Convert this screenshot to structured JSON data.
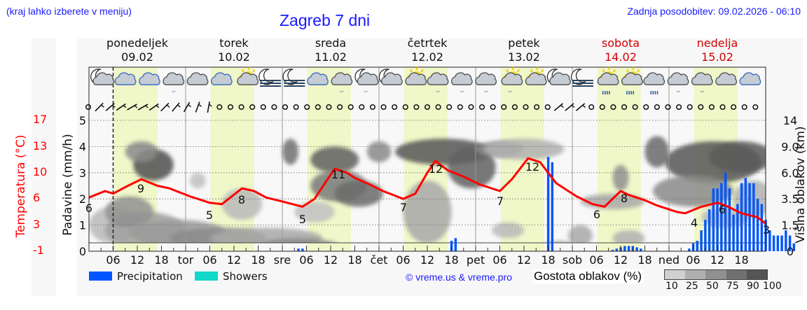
{
  "header": {
    "left_note": "(kraj lahko izberete v meniju)",
    "title": "Zagreb 7 dni",
    "updated": "Zadnja posodobitev: 09.02.2026 - 06:10"
  },
  "days": [
    {
      "name": "ponedeljek",
      "date": "09.02",
      "weekend": false
    },
    {
      "name": "torek",
      "date": "10.02",
      "weekend": false
    },
    {
      "name": "sreda",
      "date": "11.02",
      "weekend": false
    },
    {
      "name": "četrtek",
      "date": "12.02",
      "weekend": false
    },
    {
      "name": "petek",
      "date": "13.02",
      "weekend": false
    },
    {
      "name": "sobota",
      "date": "14.02",
      "weekend": true
    },
    {
      "name": "nedelja",
      "date": "15.02",
      "weekend": true
    }
  ],
  "axes": {
    "temp_label": "Temperatura (°C)",
    "temp_ticks": [
      "17",
      "13",
      "10",
      "6",
      "3",
      "-1"
    ],
    "precip_label": "Padavine (mm/h)",
    "precip_ticks": [
      "5",
      "4",
      "3",
      "2",
      "1",
      "0"
    ],
    "cloud_label": "Višina oblakov (km)",
    "cloud_ticks": [
      "14",
      "9.0",
      "6.0",
      "3.5",
      "1.5",
      "0"
    ],
    "x_ticks": [
      "06",
      "12",
      "18",
      "tor",
      "06",
      "12",
      "18",
      "sre",
      "06",
      "12",
      "18",
      "čet",
      "06",
      "12",
      "18",
      "pet",
      "06",
      "12",
      "18",
      "sob",
      "06",
      "12",
      "18",
      "ned",
      "06",
      "12",
      "18"
    ]
  },
  "legend": {
    "precipitation": "Precipitation",
    "showers": "Showers",
    "credit": "© vreme.us & vreme.pro",
    "cloud_density_label": "Gostota oblakov (%)",
    "cloud_density_ticks": [
      "10",
      "25",
      "50",
      "75",
      "90",
      "100"
    ]
  },
  "colors": {
    "precipitation": "#0055ff",
    "showers": "#11d8c8",
    "temperature": "#ff0000",
    "daylight": "#f0f7c8",
    "weekend": "#d40000",
    "link": "#1a1aff"
  },
  "icons": [
    "moon-cloud",
    "cloud",
    "cloud",
    "cloud-drizzle",
    "cloud",
    "cloud",
    "sun-cloud",
    "moon-fog",
    "moon-fog",
    "cloud",
    "cloud-drizzle",
    "moon-cloud-drizzle",
    "moon-cloud",
    "sun-cloud",
    "cloud-drizzle",
    "cloud-drizzle",
    "cloud-drizzle",
    "sun-cloud-drizzle",
    "sun-cloud",
    "moon-cloud",
    "moon-fog",
    "sun-cloud-rain",
    "sun-cloud-rain",
    "cloud-rain",
    "cloud-drizzle",
    "cloud-drizzle",
    "cloud",
    "cloud"
  ],
  "chart_data": {
    "type": "line",
    "title": "Zagreb 7 dni",
    "xlabel": "",
    "ylabel": "Padavine (mm/h)",
    "y2label": "Temperatura (°C)",
    "y3label": "Višina oblakov (km)",
    "ylim": [
      0,
      5
    ],
    "temp_ticks": [
      -1,
      3,
      6,
      10,
      13,
      17
    ],
    "grid": true,
    "x_hours": [
      0,
      6,
      12,
      18,
      24,
      30,
      36,
      42,
      48,
      54,
      60,
      66,
      72,
      78,
      84,
      90,
      96,
      102,
      108,
      114,
      120,
      126,
      132,
      138,
      144,
      150,
      156,
      162,
      168
    ],
    "series": [
      {
        "name": "Temperatura",
        "unit": "°C",
        "values": [
          6,
          7,
          8,
          9,
          8,
          7,
          5,
          6,
          8,
          7,
          5,
          5,
          9,
          11,
          10,
          8,
          7,
          9,
          12,
          11,
          9,
          7,
          10,
          12,
          9,
          7,
          6,
          8,
          7,
          6,
          5,
          4,
          5,
          6,
          5,
          4,
          3
        ]
      },
      {
        "name": "Precipitation",
        "unit": "mm/h",
        "hours": [
          52,
          53,
          90,
          91,
          114,
          115,
          130,
          131,
          132,
          133,
          134,
          135,
          136,
          137,
          149,
          150,
          151,
          152,
          153,
          154,
          155,
          156,
          157,
          158,
          159,
          160,
          161,
          162,
          163,
          164,
          165,
          166,
          167,
          168,
          169,
          170,
          171,
          172,
          173,
          174,
          175
        ],
        "values": [
          0.1,
          0.1,
          0.4,
          0.5,
          3.6,
          3.4,
          0.05,
          0.1,
          0.15,
          0.2,
          0.2,
          0.2,
          0.15,
          0.1,
          0.1,
          0.3,
          0.4,
          0.8,
          1.2,
          1.6,
          2.4,
          2.4,
          2.6,
          3.0,
          2.4,
          1.4,
          1.8,
          2.6,
          2.8,
          2.6,
          2.6,
          2.0,
          1.8,
          1.2,
          0.8,
          0.6,
          0.6,
          0.6,
          0.8,
          0.6,
          0.3
        ]
      }
    ],
    "temperature_labels": [
      {
        "hour": 0,
        "value": 6
      },
      {
        "hour": 13,
        "value": 9
      },
      {
        "hour": 30,
        "value": 5
      },
      {
        "hour": 38,
        "value": 8
      },
      {
        "hour": 53,
        "value": 5
      },
      {
        "hour": 62,
        "value": 11
      },
      {
        "hour": 78,
        "value": 7
      },
      {
        "hour": 86,
        "value": 12
      },
      {
        "hour": 102,
        "value": 7
      },
      {
        "hour": 110,
        "value": 12
      },
      {
        "hour": 126,
        "value": 6
      },
      {
        "hour": 132,
        "value": 8
      },
      {
        "hour": 150,
        "value": 4
      },
      {
        "hour": 157,
        "value": 6
      },
      {
        "hour": 167,
        "value": 3
      }
    ],
    "cloud_density_scale": [
      10,
      25,
      50,
      75,
      90,
      100
    ]
  }
}
